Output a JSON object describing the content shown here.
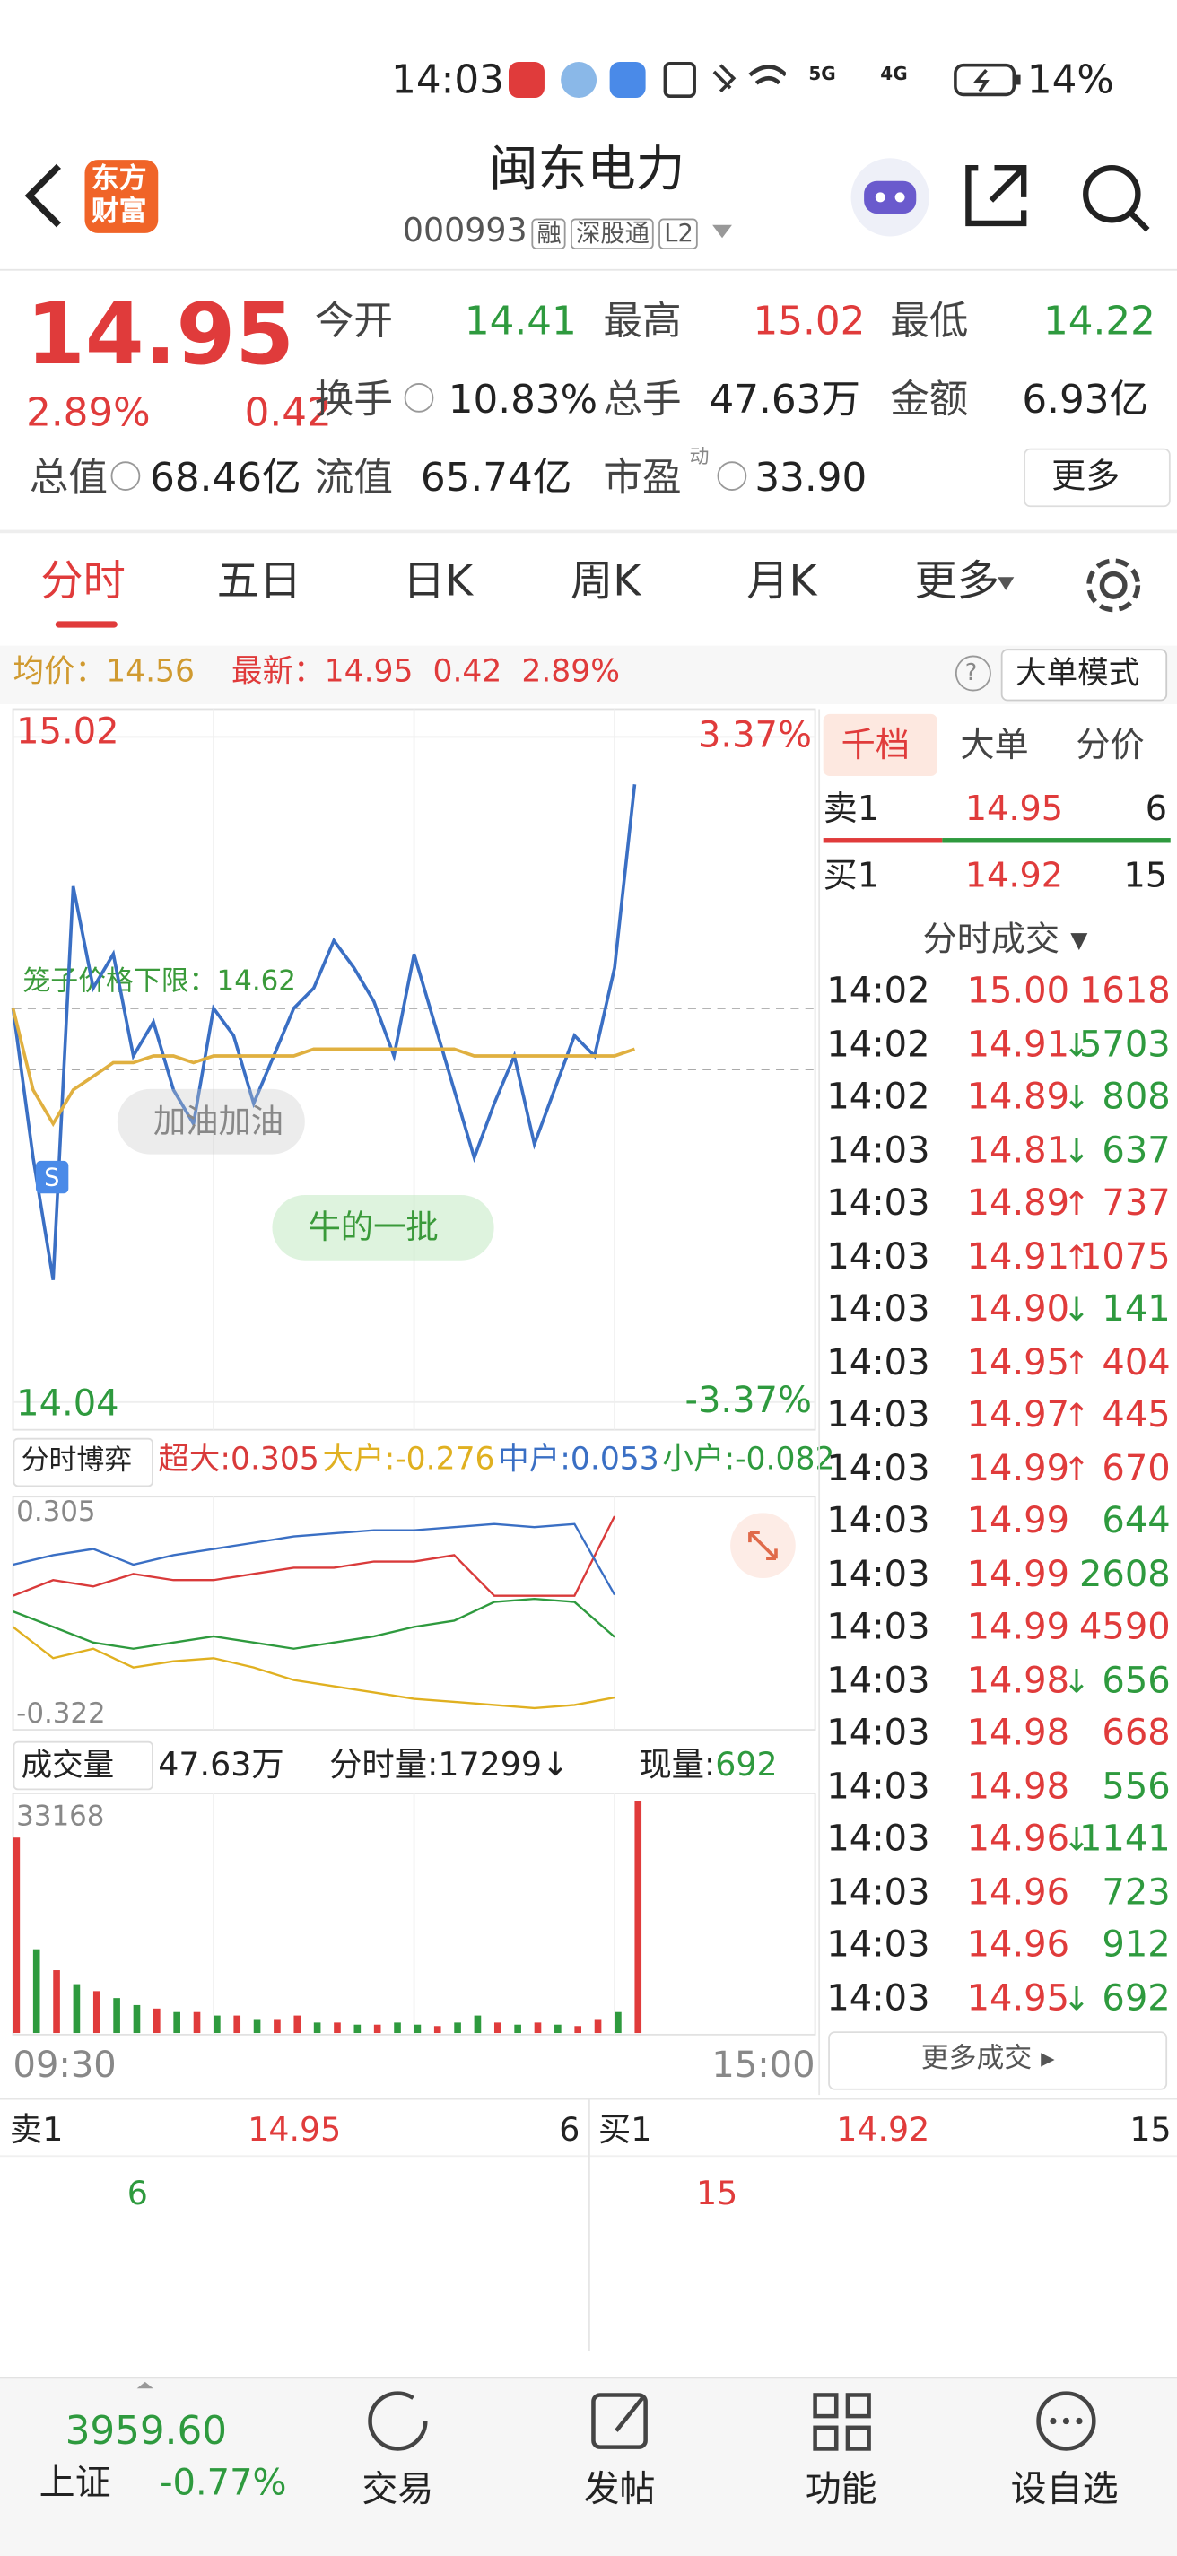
{
  "status_bar": {
    "time": "14:03",
    "network_1": "5G",
    "network_2": "4G",
    "battery": "14%"
  },
  "header": {
    "logo_line1": "东方",
    "logo_line2": "财富",
    "title": "闽东电力",
    "code": "000993",
    "tags": [
      "融",
      "深股通",
      "L2"
    ]
  },
  "quote": {
    "price": "14.95",
    "change_pct": "2.89%",
    "change": "0.42",
    "fields": [
      {
        "label": "今开",
        "value": "14.41",
        "color": "#2e9a3e"
      },
      {
        "label": "最高",
        "value": "15.02",
        "color": "#e03b3b"
      },
      {
        "label": "最低",
        "value": "14.22",
        "color": "#2e9a3e"
      },
      {
        "label": "换手",
        "value": "10.83%",
        "color": "#222222"
      },
      {
        "label": "总手",
        "value": "47.63万",
        "color": "#222222"
      },
      {
        "label": "金额",
        "value": "6.93亿",
        "color": "#222222"
      },
      {
        "label": "总值",
        "value": "68.46亿",
        "color": "#222222"
      },
      {
        "label": "流值",
        "value": "65.74亿",
        "color": "#222222"
      },
      {
        "label": "市盈",
        "value": "33.90",
        "color": "#222222"
      }
    ],
    "pe_mark": "动",
    "more": "更多"
  },
  "tabs": {
    "items": [
      "分时",
      "五日",
      "日K",
      "周K",
      "月K",
      "更多"
    ],
    "active": 0
  },
  "info_bar": {
    "avg_label": "均价：",
    "avg": "14.56",
    "latest_label": "最新：",
    "latest": "14.95",
    "change": "0.42",
    "change_pct": "2.89%",
    "help": "?",
    "mode": "大单模式"
  },
  "chart_data": [
    {
      "type": "line",
      "categories": [
        null,
        null,
        null,
        null,
        null,
        null,
        null,
        null,
        null,
        null,
        null,
        null,
        null,
        null,
        null,
        null,
        null,
        null,
        null,
        null,
        null,
        null,
        null,
        null,
        null,
        null,
        null,
        null,
        null,
        null,
        null,
        null,
        null,
        null,
        null,
        null,
        null,
        null,
        null,
        null,
        null
      ],
      "series": [
        {
          "color": "#3a6fc4",
          "values": [
            14.62,
            14.4,
            14.22,
            14.8,
            14.65,
            14.7,
            14.55,
            14.6,
            14.5,
            14.45,
            14.62,
            14.58,
            14.48,
            14.55,
            14.62,
            14.65,
            14.72,
            14.68,
            14.63,
            14.55,
            14.7,
            14.6,
            14.5,
            14.4,
            14.48,
            14.55,
            14.42,
            14.5,
            14.58,
            14.55,
            14.68,
            14.95,
            null,
            null,
            null,
            null,
            null,
            null,
            null,
            null,
            null
          ]
        },
        {
          "color": "#e0b040",
          "values": [
            14.62,
            14.5,
            14.45,
            14.5,
            14.52,
            14.54,
            14.54,
            14.55,
            14.55,
            14.54,
            14.55,
            14.55,
            14.55,
            14.55,
            14.55,
            14.56,
            14.56,
            14.56,
            14.56,
            14.56,
            14.56,
            14.56,
            14.56,
            14.55,
            14.55,
            14.55,
            14.55,
            14.55,
            14.55,
            14.55,
            14.55,
            14.56,
            null,
            null,
            null,
            null,
            null,
            null,
            null,
            null,
            null
          ]
        }
      ],
      "ylim": [
        14.04,
        15.02
      ],
      "yticks": [
        14.04,
        15.02
      ],
      "y2lim": [
        -3.37,
        3.37
      ],
      "y2ticks": [
        {
          "value": 3.37,
          "label": "3.37%"
        },
        {
          "value": -3.37,
          "label": "-3.37%"
        }
      ],
      "annotation": {
        "text": "笼子价格下限：14.62",
        "value": 14.62
      },
      "comments": [
        "加油加油",
        "牛的一批"
      ],
      "marker": "S",
      "grid": true
    },
    {
      "type": "line",
      "selector": "分时博弈",
      "categories": [
        null,
        null,
        null,
        null,
        null,
        null,
        null,
        null,
        null,
        null,
        null,
        null,
        null,
        null,
        null,
        null,
        null,
        null,
        null,
        null,
        null
      ],
      "series": [
        {
          "name": "超大",
          "color": "#d93a3a",
          "values": [
            0.05,
            0.1,
            0.08,
            0.12,
            0.1,
            0.1,
            0.12,
            0.14,
            0.14,
            0.16,
            0.16,
            0.18,
            0.05,
            0.05,
            0.05,
            0.305,
            null,
            null,
            null,
            null,
            null
          ]
        },
        {
          "name": "大户",
          "color": "#e0b020",
          "values": [
            -0.05,
            -0.15,
            -0.12,
            -0.18,
            -0.16,
            -0.15,
            -0.18,
            -0.22,
            -0.24,
            -0.26,
            -0.28,
            -0.29,
            -0.3,
            -0.31,
            -0.3,
            -0.276,
            null,
            null,
            null,
            null,
            null
          ]
        },
        {
          "name": "中户",
          "color": "#3a6fc4",
          "values": [
            0.15,
            0.18,
            0.2,
            0.15,
            0.18,
            0.2,
            0.22,
            0.24,
            0.25,
            0.26,
            0.26,
            0.27,
            0.28,
            0.27,
            0.28,
            0.053,
            null,
            null,
            null,
            null,
            null
          ]
        },
        {
          "name": "小户",
          "color": "#2e9a3e",
          "values": [
            0.0,
            -0.05,
            -0.1,
            -0.12,
            -0.1,
            -0.08,
            -0.1,
            -0.12,
            -0.1,
            -0.08,
            -0.05,
            -0.03,
            0.03,
            0.04,
            0.03,
            -0.082,
            null,
            null,
            null,
            null,
            null
          ]
        }
      ],
      "ylim": [
        -0.322,
        0.305
      ],
      "yticks": [
        -0.322,
        0.305
      ]
    },
    {
      "type": "bar",
      "selector": "成交量",
      "total": "47.63万",
      "tick_volume": "分时量:17299↓",
      "now_label": "现量:",
      "now": "692",
      "categories": [
        "09:30",
        null,
        null,
        null,
        null,
        null,
        null,
        null,
        null,
        null,
        null,
        null,
        null,
        null,
        null,
        null,
        null,
        null,
        null,
        null,
        null,
        null,
        null,
        null,
        null,
        null,
        null,
        null,
        null,
        null,
        null,
        null,
        null,
        null,
        null,
        null,
        null,
        null,
        null,
        null,
        "15:00"
      ],
      "values": [
        28000,
        12000,
        9000,
        7000,
        6000,
        5000,
        4000,
        3500,
        3000,
        3000,
        2500,
        2500,
        2000,
        2000,
        2500,
        1500,
        1500,
        1200,
        1200,
        1500,
        1200,
        1000,
        1500,
        2500,
        1500,
        1200,
        1500,
        1200,
        1000,
        2000,
        3000,
        33168,
        null,
        null,
        null,
        null,
        null,
        null,
        null,
        null,
        null
      ],
      "bar_colors": [
        "#e03b3b",
        "#2e9a3e",
        "#e03b3b",
        "#2e9a3e",
        "#e03b3b",
        "#2e9a3e",
        "#2e9a3e",
        "#e03b3b",
        "#2e9a3e",
        "#e03b3b",
        "#2e9a3e",
        "#e03b3b",
        "#2e9a3e",
        "#e03b3b",
        "#e03b3b",
        "#2e9a3e",
        "#e03b3b",
        "#2e9a3e",
        "#e03b3b",
        "#2e9a3e",
        "#2e9a3e",
        "#e03b3b",
        "#2e9a3e",
        "#2e9a3e",
        "#e03b3b",
        "#2e9a3e",
        "#e03b3b",
        "#2e9a3e",
        "#e03b3b",
        "#e03b3b",
        "#2e9a3e",
        "#e03b3b",
        null,
        null,
        null,
        null,
        null,
        null,
        null,
        null,
        null
      ],
      "ylim": [
        0,
        33168
      ],
      "yticks": [
        33168
      ]
    }
  ],
  "order_panel": {
    "tabs": [
      "千档",
      "大单",
      "分价"
    ],
    "sell": {
      "label": "卖1",
      "price": "14.95",
      "volume": "6"
    },
    "buy": {
      "label": "买1",
      "price": "14.92",
      "volume": "15"
    },
    "trades_title": "分时成交 ▾",
    "trades": [
      {
        "time": "14:02",
        "price": "15.00",
        "dir": "",
        "volume": "1618",
        "color": "#e03b3b"
      },
      {
        "time": "14:02",
        "price": "14.91",
        "dir": "↓",
        "volume": "5703",
        "color": "#2e9a3e"
      },
      {
        "time": "14:02",
        "price": "14.89",
        "dir": "↓",
        "volume": "808",
        "color": "#2e9a3e"
      },
      {
        "time": "14:03",
        "price": "14.81",
        "dir": "↓",
        "volume": "637",
        "color": "#2e9a3e"
      },
      {
        "time": "14:03",
        "price": "14.89",
        "dir": "↑",
        "volume": "737",
        "color": "#e03b3b"
      },
      {
        "time": "14:03",
        "price": "14.91",
        "dir": "↑",
        "volume": "1075",
        "color": "#e03b3b"
      },
      {
        "time": "14:03",
        "price": "14.90",
        "dir": "↓",
        "volume": "141",
        "color": "#2e9a3e"
      },
      {
        "time": "14:03",
        "price": "14.95",
        "dir": "↑",
        "volume": "404",
        "color": "#e03b3b"
      },
      {
        "time": "14:03",
        "price": "14.97",
        "dir": "↑",
        "volume": "445",
        "color": "#e03b3b"
      },
      {
        "time": "14:03",
        "price": "14.99",
        "dir": "↑",
        "volume": "670",
        "color": "#e03b3b"
      },
      {
        "time": "14:03",
        "price": "14.99",
        "dir": "",
        "volume": "644",
        "color": "#2e9a3e"
      },
      {
        "time": "14:03",
        "price": "14.99",
        "dir": "",
        "volume": "2608",
        "color": "#2e9a3e"
      },
      {
        "time": "14:03",
        "price": "14.99",
        "dir": "",
        "volume": "4590",
        "color": "#e03b3b"
      },
      {
        "time": "14:03",
        "price": "14.98",
        "dir": "↓",
        "volume": "656",
        "color": "#2e9a3e"
      },
      {
        "time": "14:03",
        "price": "14.98",
        "dir": "",
        "volume": "668",
        "color": "#e03b3b"
      },
      {
        "time": "14:03",
        "price": "14.98",
        "dir": "",
        "volume": "556",
        "color": "#2e9a3e"
      },
      {
        "time": "14:03",
        "price": "14.96",
        "dir": "↓",
        "volume": "1141",
        "color": "#2e9a3e"
      },
      {
        "time": "14:03",
        "price": "14.96",
        "dir": "",
        "volume": "723",
        "color": "#2e9a3e"
      },
      {
        "time": "14:03",
        "price": "14.96",
        "dir": "",
        "volume": "912",
        "color": "#2e9a3e"
      },
      {
        "time": "14:03",
        "price": "14.95",
        "dir": "↓",
        "volume": "692",
        "color": "#2e9a3e"
      }
    ],
    "more_trades": "更多成交 ▸"
  },
  "order_book": {
    "sell_label": "卖1",
    "sell_price": "14.95",
    "sell_volume": "6",
    "sell_detail": "6",
    "buy_label": "买1",
    "buy_price": "14.92",
    "buy_volume": "15",
    "buy_detail": "15"
  },
  "bottom_nav": {
    "index_value": "3959.60",
    "index_name": "上证",
    "index_change": "-0.77%",
    "items": [
      "交易",
      "发帖",
      "功能",
      "设自选"
    ]
  }
}
